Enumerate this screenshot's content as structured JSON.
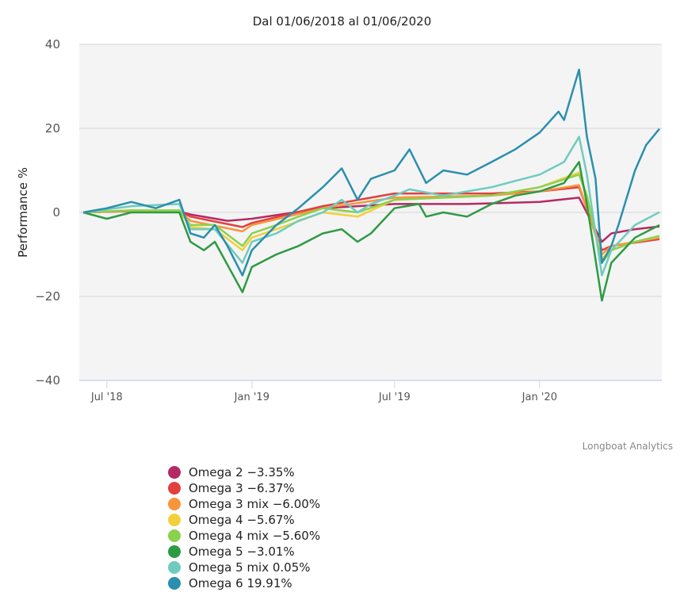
{
  "chart_data": {
    "type": "line",
    "title": "Dal 01/06/2018 al 01/06/2020",
    "ylabel": "Performance %",
    "xlabel": "",
    "ylim": [
      -40,
      40
    ],
    "yticks": [
      "40",
      "20",
      "0",
      "−20",
      "−40"
    ],
    "ytick_values": [
      40,
      20,
      0,
      -20,
      -40
    ],
    "xticks": [
      {
        "label": "Jul '18",
        "date": "2018-07-01"
      },
      {
        "label": "Jan '19",
        "date": "2019-01-01"
      },
      {
        "label": "Jul '19",
        "date": "2019-07-01"
      },
      {
        "label": "Jan '20",
        "date": "2020-01-01"
      }
    ],
    "xlim": [
      "2018-06-01",
      "2020-06-01"
    ],
    "grid": true,
    "legend_position": "bottom-left",
    "credits": "Longboat Analytics",
    "series": [
      {
        "name": "Omega 2",
        "legend": "Omega 2 −3.35%",
        "color": "#b52a63",
        "points": [
          [
            "2018-06-01",
            0
          ],
          [
            "2018-08-01",
            0.3
          ],
          [
            "2018-10-01",
            0.2
          ],
          [
            "2018-10-15",
            -0.5
          ],
          [
            "2018-12-01",
            -2
          ],
          [
            "2019-01-01",
            -1.5
          ],
          [
            "2019-04-01",
            1
          ],
          [
            "2019-07-01",
            2
          ],
          [
            "2019-10-01",
            2
          ],
          [
            "2020-01-01",
            2.5
          ],
          [
            "2020-02-20",
            3.5
          ],
          [
            "2020-03-20",
            -7
          ],
          [
            "2020-04-01",
            -5
          ],
          [
            "2020-05-01",
            -4
          ],
          [
            "2020-06-01",
            -3.35
          ]
        ]
      },
      {
        "name": "Omega 3",
        "legend": "Omega 3 −6.37%",
        "color": "#e1403f",
        "points": [
          [
            "2018-06-01",
            0
          ],
          [
            "2018-08-01",
            0.3
          ],
          [
            "2018-10-01",
            0.3
          ],
          [
            "2018-10-15",
            -1
          ],
          [
            "2018-12-20",
            -3.5
          ],
          [
            "2019-01-01",
            -2.5
          ],
          [
            "2019-04-01",
            1.5
          ],
          [
            "2019-07-01",
            4.5
          ],
          [
            "2019-11-01",
            4.5
          ],
          [
            "2020-01-01",
            5
          ],
          [
            "2020-02-20",
            6
          ],
          [
            "2020-03-20",
            -9
          ],
          [
            "2020-04-01",
            -8
          ],
          [
            "2020-06-01",
            -6.37
          ]
        ]
      },
      {
        "name": "Omega 3 mix",
        "legend": "Omega 3 mix −6.00%",
        "color": "#f7953b",
        "points": [
          [
            "2018-06-01",
            0
          ],
          [
            "2018-08-01",
            0.4
          ],
          [
            "2018-10-01",
            0.3
          ],
          [
            "2018-10-15",
            -2
          ],
          [
            "2018-12-20",
            -4.5
          ],
          [
            "2019-01-01",
            -3
          ],
          [
            "2019-04-01",
            1
          ],
          [
            "2019-07-01",
            3.5
          ],
          [
            "2019-11-01",
            4
          ],
          [
            "2020-01-01",
            5
          ],
          [
            "2020-02-20",
            6.5
          ],
          [
            "2020-03-20",
            -10
          ],
          [
            "2020-04-01",
            -8
          ],
          [
            "2020-06-01",
            -6
          ]
        ]
      },
      {
        "name": "Omega 4",
        "legend": "Omega 4 −5.67%",
        "color": "#f2d03b",
        "points": [
          [
            "2018-06-01",
            0
          ],
          [
            "2018-08-01",
            0.5
          ],
          [
            "2018-10-01",
            0.3
          ],
          [
            "2018-10-15",
            -3.5
          ],
          [
            "2018-11-15",
            -4
          ],
          [
            "2018-12-20",
            -9
          ],
          [
            "2019-01-01",
            -6
          ],
          [
            "2019-02-01",
            -4
          ],
          [
            "2019-04-01",
            0
          ],
          [
            "2019-05-15",
            -1
          ],
          [
            "2019-07-01",
            3
          ],
          [
            "2019-09-01",
            3.5
          ],
          [
            "2019-11-01",
            4
          ],
          [
            "2020-01-01",
            6
          ],
          [
            "2020-02-20",
            9.5
          ],
          [
            "2020-03-01",
            4
          ],
          [
            "2020-03-20",
            -11
          ],
          [
            "2020-04-01",
            -9
          ],
          [
            "2020-05-01",
            -7
          ],
          [
            "2020-06-01",
            -5.67
          ]
        ]
      },
      {
        "name": "Omega 4 mix",
        "legend": "Omega 4 mix −5.60%",
        "color": "#8cd14e",
        "points": [
          [
            "2018-06-01",
            0
          ],
          [
            "2018-08-01",
            0.5
          ],
          [
            "2018-10-01",
            0.5
          ],
          [
            "2018-10-15",
            -3
          ],
          [
            "2018-11-15",
            -3
          ],
          [
            "2018-12-20",
            -8
          ],
          [
            "2019-01-01",
            -5
          ],
          [
            "2019-02-01",
            -3
          ],
          [
            "2019-03-01",
            -1
          ],
          [
            "2019-04-01",
            1
          ],
          [
            "2019-05-15",
            0
          ],
          [
            "2019-07-01",
            3
          ],
          [
            "2019-09-01",
            3.5
          ],
          [
            "2019-11-01",
            4
          ],
          [
            "2020-01-01",
            6
          ],
          [
            "2020-02-20",
            9
          ],
          [
            "2020-03-01",
            4
          ],
          [
            "2020-03-20",
            -12
          ],
          [
            "2020-04-01",
            -9
          ],
          [
            "2020-05-01",
            -7
          ],
          [
            "2020-06-01",
            -5.6
          ]
        ]
      },
      {
        "name": "Omega 5",
        "legend": "Omega 5 −3.01%",
        "color": "#2e9a43",
        "points": [
          [
            "2018-06-01",
            0
          ],
          [
            "2018-07-01",
            -1.5
          ],
          [
            "2018-08-01",
            0
          ],
          [
            "2018-10-01",
            0
          ],
          [
            "2018-10-15",
            -7
          ],
          [
            "2018-11-01",
            -9
          ],
          [
            "2018-11-15",
            -7
          ],
          [
            "2018-12-20",
            -19
          ],
          [
            "2019-01-01",
            -13
          ],
          [
            "2019-02-01",
            -10
          ],
          [
            "2019-03-01",
            -8
          ],
          [
            "2019-04-01",
            -5
          ],
          [
            "2019-04-25",
            -4
          ],
          [
            "2019-05-15",
            -7
          ],
          [
            "2019-06-01",
            -5
          ],
          [
            "2019-07-01",
            1
          ],
          [
            "2019-08-01",
            2
          ],
          [
            "2019-08-10",
            -1
          ],
          [
            "2019-09-01",
            0
          ],
          [
            "2019-10-01",
            -1
          ],
          [
            "2019-11-01",
            2
          ],
          [
            "2019-12-01",
            4
          ],
          [
            "2020-01-01",
            5
          ],
          [
            "2020-02-01",
            7
          ],
          [
            "2020-02-20",
            12
          ],
          [
            "2020-03-01",
            2
          ],
          [
            "2020-03-20",
            -21
          ],
          [
            "2020-04-01",
            -12
          ],
          [
            "2020-05-01",
            -6
          ],
          [
            "2020-06-01",
            -3.01
          ]
        ]
      },
      {
        "name": "Omega 5 mix",
        "legend": "Omega 5 mix 0.05%",
        "color": "#6fcbbf",
        "points": [
          [
            "2018-06-01",
            0
          ],
          [
            "2018-08-01",
            1.5
          ],
          [
            "2018-10-01",
            2
          ],
          [
            "2018-10-15",
            -4
          ],
          [
            "2018-11-15",
            -4
          ],
          [
            "2018-12-20",
            -12
          ],
          [
            "2019-01-01",
            -7
          ],
          [
            "2019-02-01",
            -5
          ],
          [
            "2019-03-01",
            -2
          ],
          [
            "2019-04-01",
            0
          ],
          [
            "2019-04-25",
            3
          ],
          [
            "2019-05-15",
            0
          ],
          [
            "2019-06-01",
            2
          ],
          [
            "2019-07-01",
            4
          ],
          [
            "2019-07-20",
            5.5
          ],
          [
            "2019-09-01",
            4
          ],
          [
            "2019-10-01",
            5
          ],
          [
            "2019-11-01",
            6
          ],
          [
            "2019-12-01",
            7.5
          ],
          [
            "2020-01-01",
            9
          ],
          [
            "2020-02-01",
            12
          ],
          [
            "2020-02-20",
            18
          ],
          [
            "2020-03-01",
            9
          ],
          [
            "2020-03-20",
            -15
          ],
          [
            "2020-04-01",
            -9
          ],
          [
            "2020-05-01",
            -3
          ],
          [
            "2020-06-01",
            0.05
          ]
        ]
      },
      {
        "name": "Omega 6",
        "legend": "Omega 6 19.91%",
        "color": "#2b8fad",
        "points": [
          [
            "2018-06-01",
            0
          ],
          [
            "2018-07-01",
            1
          ],
          [
            "2018-08-01",
            2.5
          ],
          [
            "2018-09-01",
            1
          ],
          [
            "2018-10-01",
            3
          ],
          [
            "2018-10-15",
            -5
          ],
          [
            "2018-11-01",
            -6
          ],
          [
            "2018-11-15",
            -3
          ],
          [
            "2018-12-01",
            -8
          ],
          [
            "2018-12-20",
            -15
          ],
          [
            "2019-01-01",
            -9
          ],
          [
            "2019-02-01",
            -3
          ],
          [
            "2019-03-01",
            1
          ],
          [
            "2019-04-01",
            6
          ],
          [
            "2019-04-25",
            10.5
          ],
          [
            "2019-05-15",
            3
          ],
          [
            "2019-06-01",
            8
          ],
          [
            "2019-07-01",
            10
          ],
          [
            "2019-07-20",
            15
          ],
          [
            "2019-08-10",
            7
          ],
          [
            "2019-09-01",
            10
          ],
          [
            "2019-10-01",
            9
          ],
          [
            "2019-11-01",
            12
          ],
          [
            "2019-12-01",
            15
          ],
          [
            "2020-01-01",
            19
          ],
          [
            "2020-01-25",
            24
          ],
          [
            "2020-02-01",
            22
          ],
          [
            "2020-02-20",
            34
          ],
          [
            "2020-03-01",
            18
          ],
          [
            "2020-03-12",
            8
          ],
          [
            "2020-03-20",
            -12
          ],
          [
            "2020-04-01",
            -8
          ],
          [
            "2020-04-10",
            -3
          ],
          [
            "2020-05-01",
            10
          ],
          [
            "2020-05-15",
            16
          ],
          [
            "2020-06-01",
            19.91
          ]
        ]
      }
    ]
  }
}
